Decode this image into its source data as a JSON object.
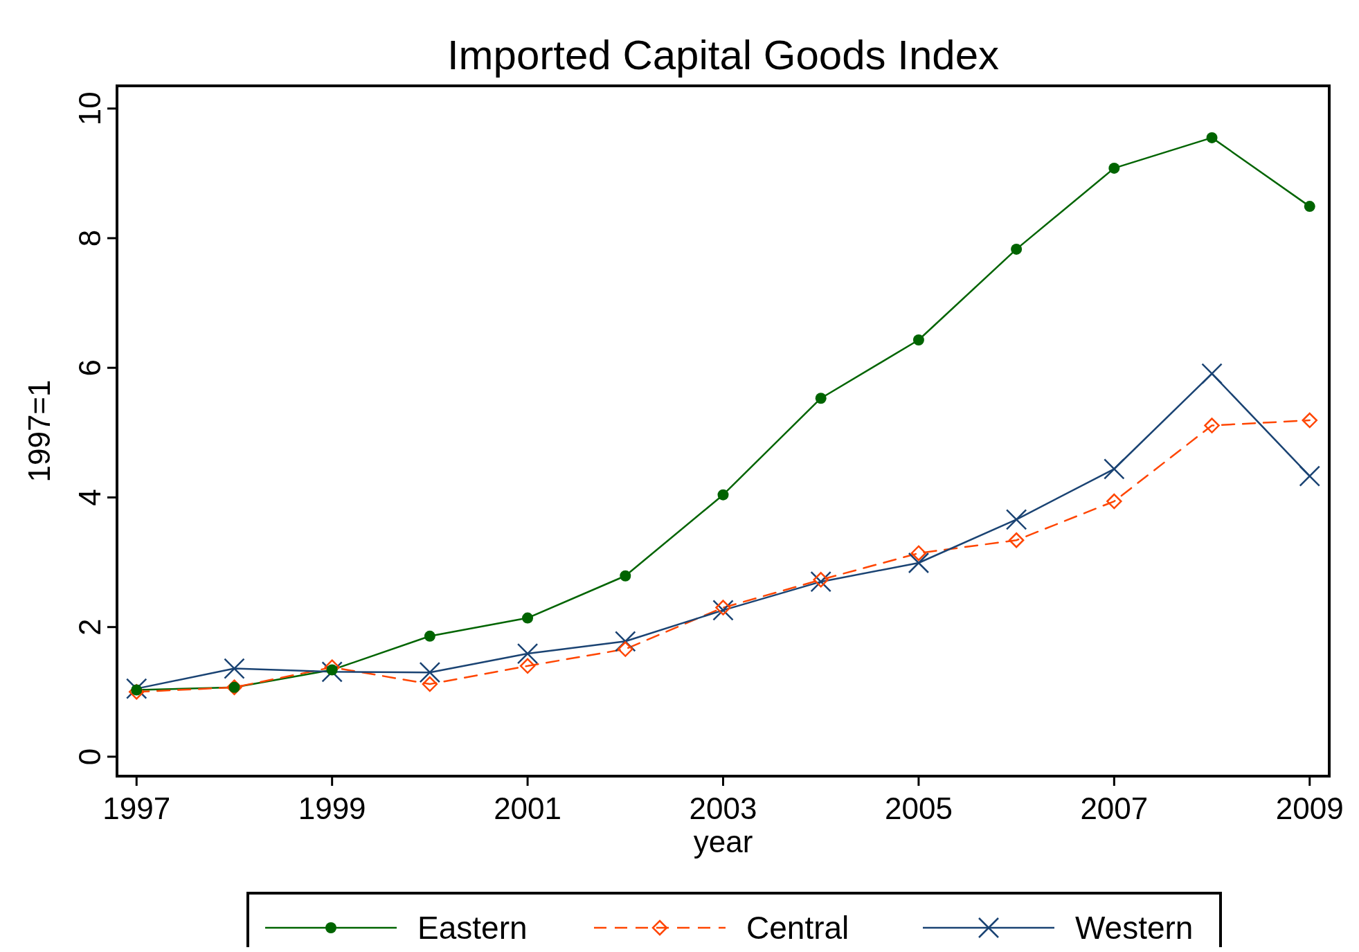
{
  "chart_data": {
    "type": "line",
    "title": "Imported Capital Goods Index",
    "xlabel": "year",
    "ylabel": "1997=1",
    "x": [
      1997,
      1998,
      1999,
      2000,
      2001,
      2002,
      2003,
      2004,
      2005,
      2006,
      2007,
      2008,
      2009
    ],
    "series": [
      {
        "name": "Eastern",
        "color": "#006400",
        "marker": "circle",
        "line_style": "solid",
        "values": [
          1.03,
          1.07,
          1.34,
          1.86,
          2.14,
          2.79,
          4.04,
          5.53,
          6.43,
          7.83,
          9.08,
          9.55,
          8.49
        ]
      },
      {
        "name": "Central",
        "color": "#ff4500",
        "marker": "diamond",
        "line_style": "dashed",
        "values": [
          1.0,
          1.07,
          1.38,
          1.12,
          1.4,
          1.66,
          2.3,
          2.73,
          3.14,
          3.34,
          3.94,
          5.11,
          5.19
        ]
      },
      {
        "name": "Western",
        "color": "#1a4373",
        "marker": "cross",
        "line_style": "solid",
        "values": [
          1.05,
          1.36,
          1.31,
          1.3,
          1.59,
          1.78,
          2.26,
          2.7,
          2.99,
          3.66,
          4.44,
          5.91,
          4.33
        ]
      }
    ],
    "xlim": [
      1996.8,
      2009.2
    ],
    "ylim": [
      -0.3,
      10.35
    ],
    "xticks": [
      1997,
      1999,
      2001,
      2003,
      2005,
      2007,
      2009
    ],
    "yticks": [
      0,
      2,
      4,
      6,
      8,
      10
    ],
    "grid": false,
    "legend": "bottom"
  }
}
